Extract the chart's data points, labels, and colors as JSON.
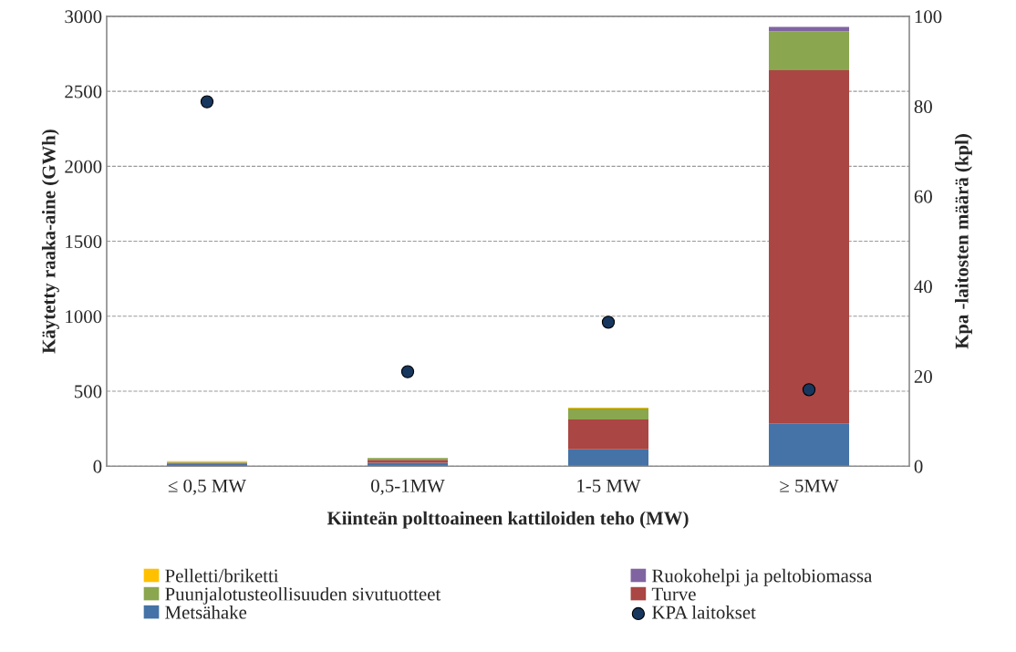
{
  "chart_data": {
    "type": "bar",
    "stacked": true,
    "categories": [
      "≤ 0,5 MW",
      "0,5-1MW",
      "1-5 MW",
      "≥ 5MW"
    ],
    "xlabel": "Kiinteän polttoaineen kattiloiden teho (MW)",
    "ylabel": "Käytetty raaka-aine (GWh)",
    "y2label": "Kpa -laitosten määrä (kpl)",
    "series": [
      {
        "name": "Metsähake",
        "color": "#4572a7",
        "values": [
          15,
          22,
          112,
          285
        ]
      },
      {
        "name": "Turve",
        "color": "#aa4643",
        "values": [
          8,
          20,
          200,
          2355
        ]
      },
      {
        "name": "Puunjalotusteollisuuden sivutuotteet",
        "color": "#8aa64f",
        "values": [
          5,
          12,
          73,
          260
        ]
      },
      {
        "name": "Ruokohelpi ja peltobiomassa",
        "color": "#8064a2",
        "values": [
          0,
          0,
          0,
          29
        ]
      },
      {
        "name": "Pelletti/briketti",
        "color": "#ffc000",
        "values": [
          5,
          null,
          6,
          0
        ]
      },
      {
        "name": "KPA laitokset",
        "type": "scatter",
        "axis": "y2",
        "color": "#17375e",
        "values": [
          81,
          21,
          32,
          17
        ]
      }
    ],
    "ylim": [
      0,
      3000
    ],
    "yticks": [
      0,
      500,
      1000,
      1500,
      2000,
      2500,
      3000
    ],
    "y2lim": [
      0,
      100
    ],
    "y2ticks": [
      0,
      20,
      40,
      60,
      80,
      100
    ],
    "grid": "y",
    "legend": "bottom",
    "marker": "circle"
  }
}
